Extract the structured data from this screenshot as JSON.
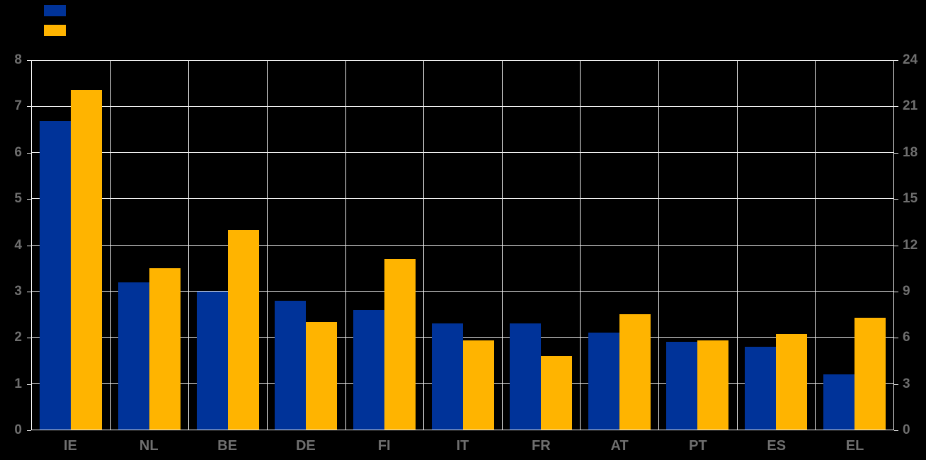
{
  "colors": {
    "background": "#000000",
    "bar_blue": "#003399",
    "bar_yellow": "#ffb400",
    "gridline": "#efefef",
    "axis_label": "#6f6f6f"
  },
  "legend": {
    "position": "top-left",
    "items": [
      {
        "name": "blue-series",
        "label": "",
        "color": "#003399"
      },
      {
        "name": "yellow-series",
        "label": "",
        "color": "#ffb400"
      }
    ]
  },
  "chart_data": {
    "type": "bar",
    "categories": [
      "IE",
      "NL",
      "BE",
      "DE",
      "FI",
      "IT",
      "FR",
      "AT",
      "PT",
      "ES",
      "EL"
    ],
    "series": [
      {
        "name": "blue-series",
        "color": "#003399",
        "axis": "left",
        "values": [
          6.7,
          3.2,
          3.0,
          2.8,
          2.6,
          2.3,
          2.3,
          2.1,
          1.9,
          1.8,
          1.2
        ]
      },
      {
        "name": "yellow-series",
        "color": "#ffb400",
        "axis": "right",
        "values": [
          22.1,
          10.5,
          13.0,
          7.0,
          11.1,
          5.8,
          4.8,
          7.5,
          5.8,
          6.2,
          7.3
        ]
      }
    ],
    "axes": {
      "left": {
        "min": 0,
        "max": 8,
        "ticks": [
          "0",
          "1",
          "2",
          "3",
          "4",
          "5",
          "6",
          "7",
          "8"
        ]
      },
      "right": {
        "min": 0,
        "max": 24,
        "ticks": [
          "0",
          "3",
          "6",
          "9",
          "12",
          "15",
          "18",
          "21",
          "24"
        ]
      }
    },
    "grid": true,
    "legend_position": "top-left",
    "title": ""
  }
}
